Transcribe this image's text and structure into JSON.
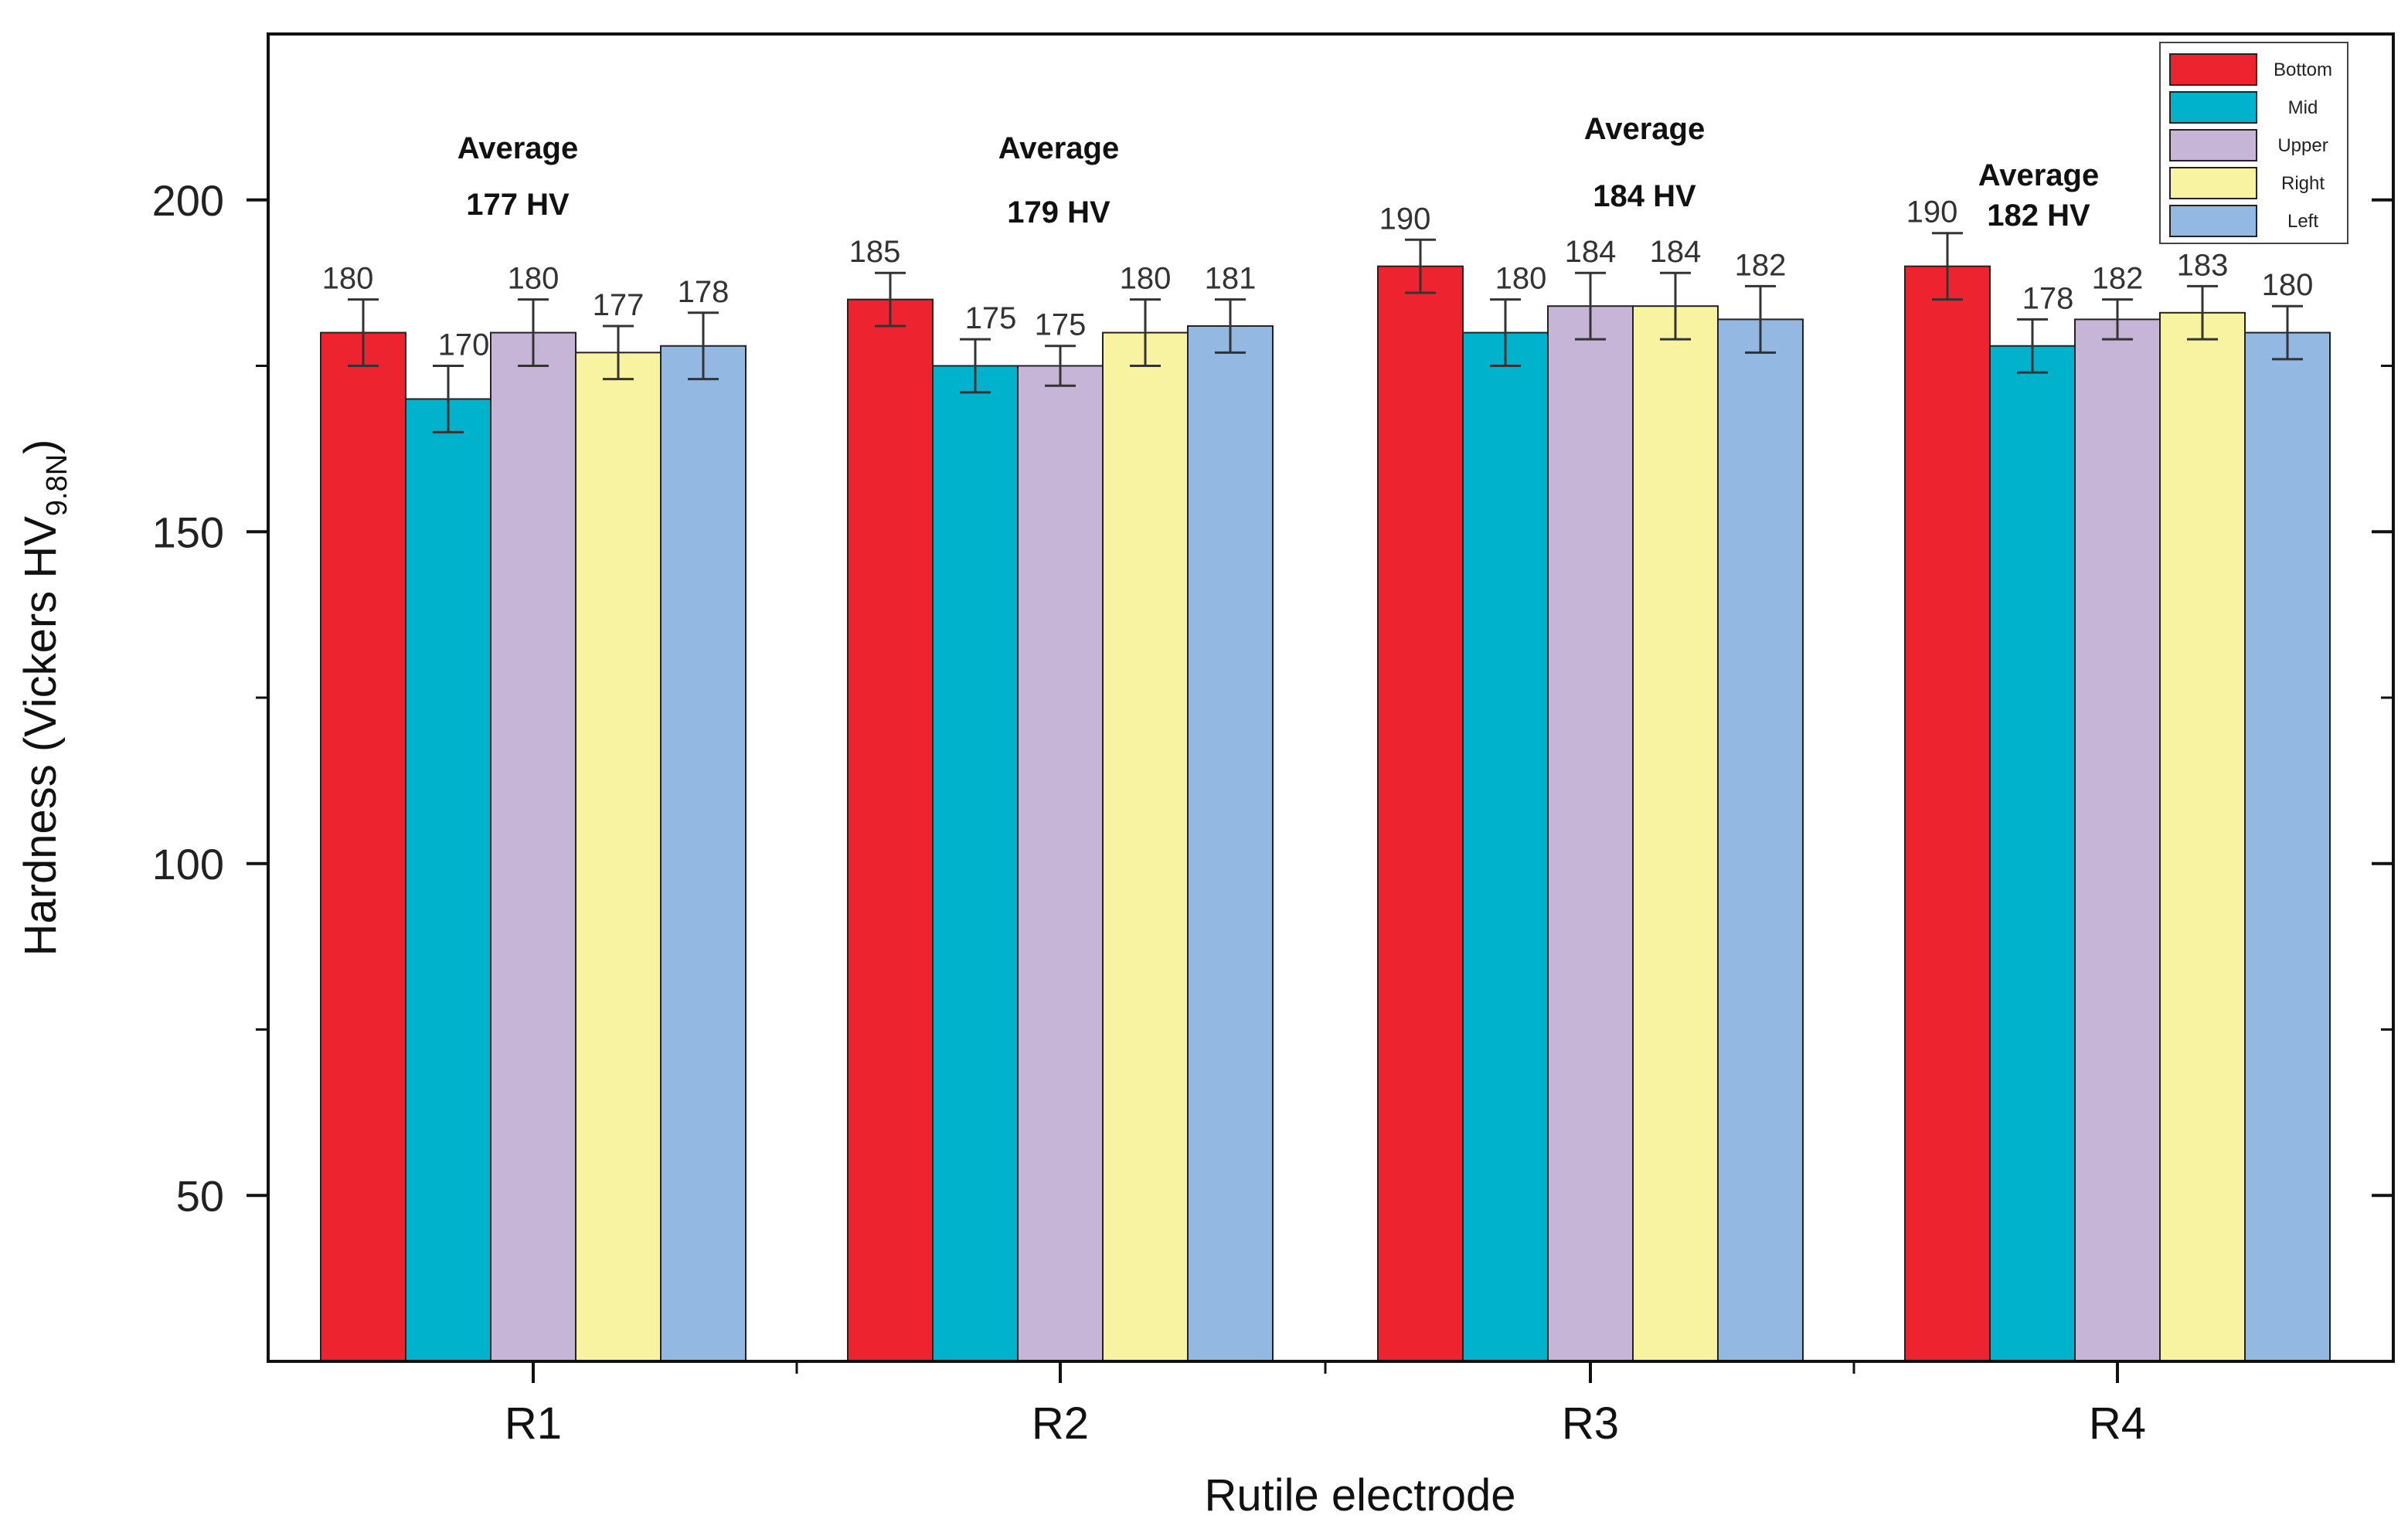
{
  "chart_data": {
    "type": "bar",
    "title": "",
    "xlabel": "Rutile electrode",
    "ylabel_main": "Hardness (Vickers HV",
    "ylabel_sub": "9.8N",
    "ylabel_close": ")",
    "ylim": [
      25,
      225
    ],
    "yticks": [
      50,
      100,
      150,
      200
    ],
    "categories": [
      "R1",
      "R2",
      "R3",
      "R4"
    ],
    "series": [
      {
        "name": "Bottom",
        "color": "#ED2430",
        "values": [
          180,
          185,
          190,
          190
        ],
        "errors": [
          5,
          4,
          4,
          5
        ]
      },
      {
        "name": "Mid",
        "color": "#00B2CC",
        "values": [
          170,
          175,
          180,
          178
        ],
        "errors": [
          5,
          4,
          5,
          4
        ]
      },
      {
        "name": "Upper",
        "color": "#C7B5D8",
        "values": [
          180,
          175,
          184,
          182
        ],
        "errors": [
          5,
          3,
          5,
          3
        ]
      },
      {
        "name": "Right",
        "color": "#F7F3A0",
        "values": [
          177,
          180,
          184,
          183
        ],
        "errors": [
          4,
          5,
          5,
          4
        ]
      },
      {
        "name": "Left",
        "color": "#93B9E3",
        "values": [
          178,
          181,
          182,
          180
        ],
        "errors": [
          5,
          4,
          5,
          4
        ]
      }
    ],
    "data_labels": [
      [
        "180",
        "185",
        "190",
        "190"
      ],
      [
        "170",
        "175",
        "180",
        "178"
      ],
      [
        "180",
        "175",
        "184",
        "182"
      ],
      [
        "177",
        "180",
        "184",
        "183"
      ],
      [
        "178",
        "181",
        "182",
        "180"
      ]
    ],
    "annotations": [
      {
        "line1": "Average",
        "line2": "177 HV"
      },
      {
        "line1": "Average",
        "line2": "179 HV"
      },
      {
        "line1": "Average",
        "line2": "184 HV"
      },
      {
        "line1": "Average",
        "line2": "182 HV"
      }
    ],
    "legend_position": "top-right"
  }
}
